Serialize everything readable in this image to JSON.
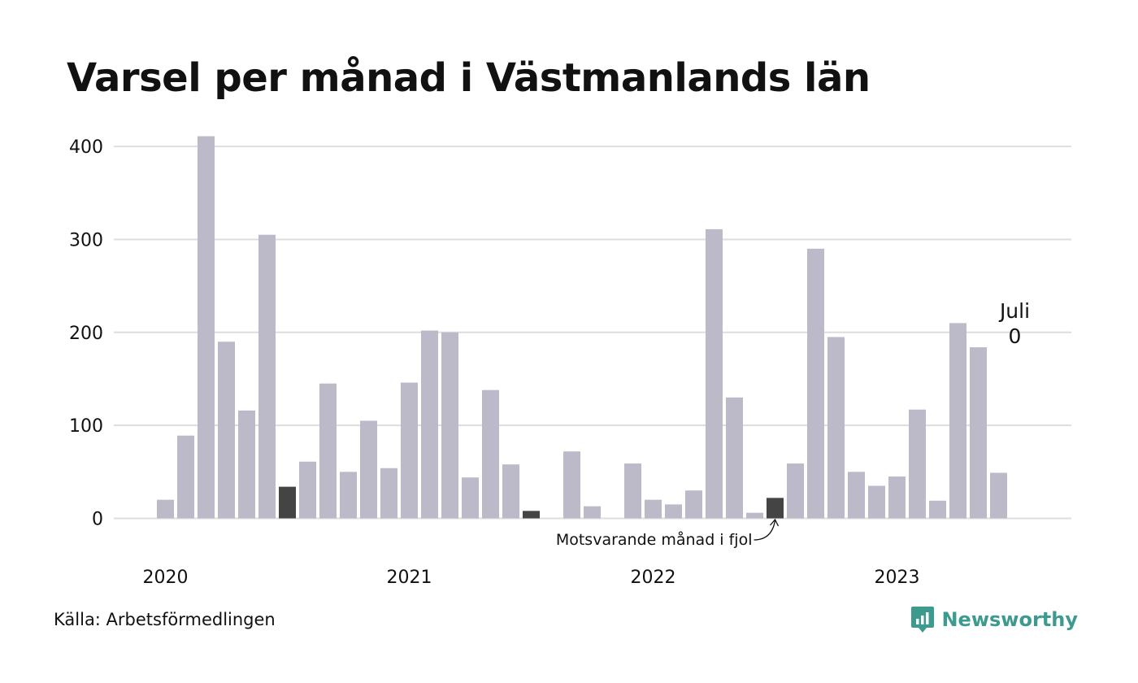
{
  "title": "Varsel per månad i Västmanlands län",
  "source": "Källa: Arbetsförmedlingen",
  "logo_text": "Newsworthy",
  "colors": {
    "bar": "#bcbac8",
    "highlight": "#444444",
    "grid": "#dddddd",
    "brand": "#3d9a8e"
  },
  "chart_data": {
    "type": "bar",
    "title": "Varsel per månad i Västmanlands län",
    "x_tick_labels": [
      "2020",
      "2021",
      "2022",
      "2023"
    ],
    "y_ticks": [
      0,
      100,
      200,
      300,
      400
    ],
    "ylim": [
      0,
      420
    ],
    "grid": true,
    "values": [
      20,
      89,
      411,
      190,
      116,
      305,
      34,
      61,
      145,
      50,
      105,
      54,
      146,
      202,
      200,
      44,
      138,
      58,
      8,
      0,
      72,
      13,
      0,
      59,
      20,
      15,
      30,
      311,
      130,
      6,
      22,
      59,
      290,
      195,
      50,
      35,
      45,
      117,
      19,
      210,
      184,
      49,
      0
    ],
    "highlighted_indices": [
      6,
      18,
      30
    ],
    "annotation": "Motsvarande månad i fjol",
    "last_label": {
      "month": "Juli",
      "value": "0"
    }
  }
}
